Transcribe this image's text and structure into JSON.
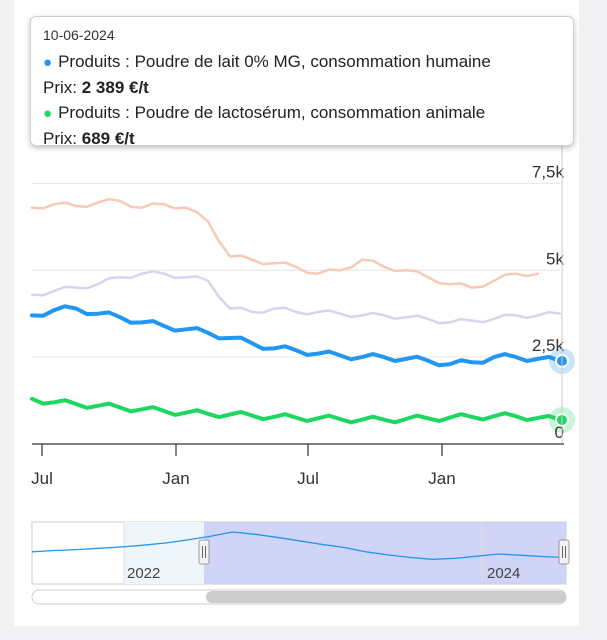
{
  "tooltip": {
    "date": "10-06-2024",
    "series1_label": "Produits : Poudre de lait 0% MG, consommation humaine",
    "series1_color": "#2196f3",
    "series1_prefix": "Prix: ",
    "series1_value": "2 389 €/t",
    "series2_label": "Produits : Poudre de lactosérum, consommation animale",
    "series2_color": "#1ed760",
    "series2_prefix": "Prix: ",
    "series2_value": "689 €/t"
  },
  "navigator": {
    "year_labels": [
      "2022",
      "2024"
    ]
  },
  "chart_data": {
    "type": "line",
    "x_range": [
      "2022-06",
      "2024-06"
    ],
    "ylim": [
      0,
      8000
    ],
    "y_ticks": [
      "0",
      "2,5k",
      "5k",
      "7,5k"
    ],
    "x_ticks": [
      "Jul",
      "Jan",
      "Jul",
      "Jan"
    ],
    "grid": "horizontal",
    "series": [
      {
        "name": "Produits : Poudre de lait 0% MG, consommation humaine",
        "color": "#2196f3",
        "emphasis": true,
        "values": [
          3700,
          3850,
          3900,
          3750,
          3650,
          3500,
          3400,
          3300,
          3200,
          3050,
          2900,
          2750,
          2700,
          2600,
          2550,
          2500,
          2500,
          2450,
          2400,
          2300,
          2350,
          2500,
          2500,
          2450,
          2389
        ]
      },
      {
        "name": "Produits : Poudre de lactosérum, consommation animale",
        "color": "#1ed760",
        "emphasis": true,
        "values": [
          1300,
          1200,
          1150,
          1100,
          1050,
          1000,
          950,
          900,
          870,
          850,
          820,
          780,
          760,
          740,
          720,
          700,
          700,
          720,
          740,
          760,
          780,
          800,
          800,
          750,
          689
        ]
      },
      {
        "color": "#f8c9b5",
        "emphasis": false,
        "values": [
          6800,
          6900,
          6850,
          6950,
          7000,
          6800,
          6900,
          6800,
          6400,
          5400,
          5300,
          5200,
          5100,
          4900,
          5000,
          5300,
          5100,
          5000,
          4800,
          4600,
          4500,
          4700,
          4900,
          4900,
          null
        ]
      },
      {
        "color": "#d8d4f0",
        "emphasis": false,
        "values": [
          4300,
          4400,
          4500,
          4600,
          4800,
          4900,
          4900,
          4800,
          4700,
          3900,
          3800,
          3900,
          3800,
          3800,
          3750,
          3700,
          3700,
          3650,
          3600,
          3500,
          3550,
          3600,
          3700,
          3700,
          3750
        ]
      }
    ],
    "navigator_series": [
      0.55,
      0.58,
      0.6,
      0.63,
      0.66,
      0.7,
      0.75,
      0.82,
      0.9,
      1.0,
      0.95,
      0.88,
      0.8,
      0.72,
      0.65,
      0.55,
      0.48,
      0.42,
      0.38,
      0.4,
      0.45,
      0.5,
      0.47,
      0.44,
      0.42
    ]
  }
}
